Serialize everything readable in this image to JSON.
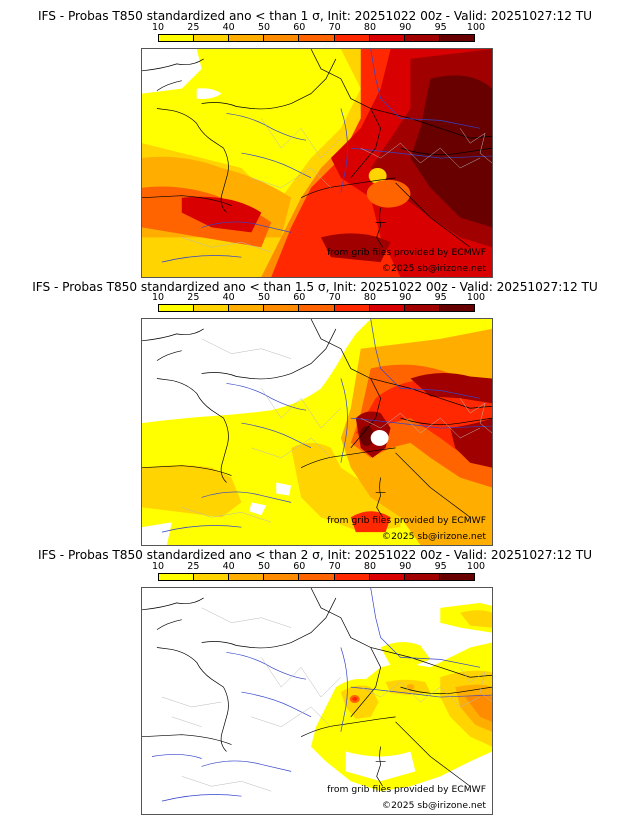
{
  "colorbar": {
    "labels": [
      "10",
      "25",
      "40",
      "50",
      "60",
      "70",
      "80",
      "90",
      "95",
      "100"
    ],
    "colors": [
      "#ffff00",
      "#ffd400",
      "#ffae00",
      "#ff8c00",
      "#ff6400",
      "#ff2800",
      "#d80000",
      "#a00000",
      "#680000"
    ]
  },
  "credits": {
    "source": "from grib files provided by ECMWF",
    "copyright": "©2025 sb@irizone.net"
  },
  "panels": [
    {
      "title": "IFS - Probas T850  standardized ano < than 1 σ, Init: 20251022 00z - Valid: 20251027:12 TU"
    },
    {
      "title": "IFS - Probas T850  standardized ano < than 1.5 σ, Init: 20251022 00z - Valid: 20251027:12 TU"
    },
    {
      "title": "IFS - Probas T850  standardized ano < than 2 σ, Init: 20251022 00z - Valid: 20251027:12 TU"
    }
  ]
}
